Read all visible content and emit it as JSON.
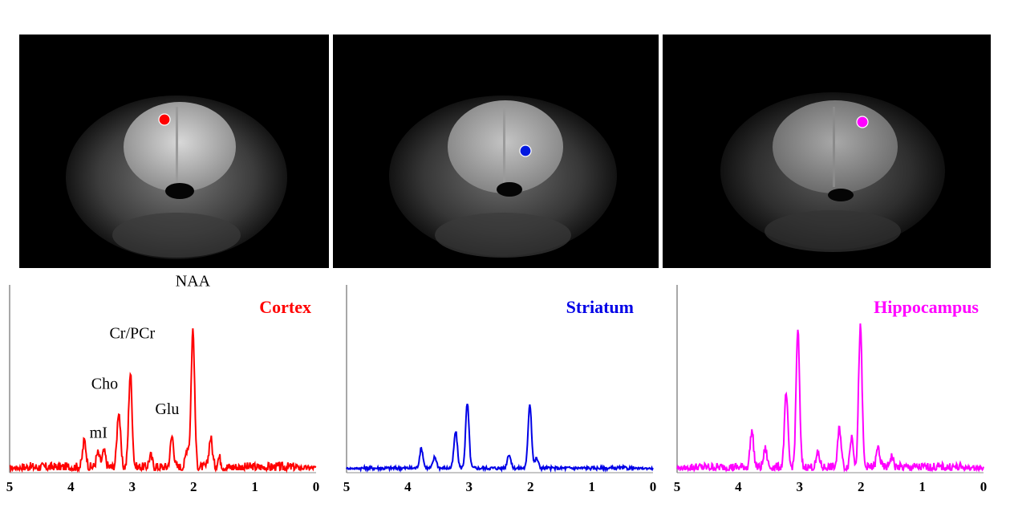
{
  "chart_data": [
    {
      "type": "line",
      "title": "Cortex",
      "title_color": "#ff0000",
      "line_color": "#ff0000",
      "dot_color": "#ff0000",
      "xlim": [
        5,
        0
      ],
      "x_ticks": [
        "5",
        "4",
        "3",
        "2",
        "1",
        "0"
      ],
      "peaks": [
        {
          "label": "NAA",
          "ppm": 2.01,
          "height": 0.98
        },
        {
          "label": "Cr/PCr",
          "ppm": 3.03,
          "height": 0.67
        },
        {
          "label": "Cho",
          "ppm": 3.22,
          "height": 0.4
        },
        {
          "label": "Glu",
          "ppm": 2.35,
          "height": 0.22
        },
        {
          "label": "mI",
          "ppm": 3.56,
          "height": 0.1
        }
      ],
      "minor_peaks": [
        [
          3.78,
          0.19
        ],
        [
          3.46,
          0.11
        ],
        [
          2.7,
          0.08
        ],
        [
          2.1,
          0.14
        ],
        [
          1.72,
          0.21
        ],
        [
          1.58,
          0.07
        ]
      ],
      "noise": 0.07,
      "peak_labels": [
        {
          "text": "NAA",
          "ppm": 2.01,
          "level": 1.3
        },
        {
          "text": "Cr/PCr",
          "ppm": 3.0,
          "level": 0.93
        },
        {
          "text": "Cho",
          "ppm": 3.45,
          "level": 0.57
        },
        {
          "text": "Glu",
          "ppm": 2.43,
          "level": 0.39
        },
        {
          "text": "mI",
          "ppm": 3.55,
          "level": 0.22
        }
      ]
    },
    {
      "type": "line",
      "title": "Striatum",
      "title_color": "#0000e6",
      "line_color": "#0000e6",
      "dot_color": "#0018e0",
      "xlim": [
        5,
        0
      ],
      "x_ticks": [
        "5",
        "4",
        "3",
        "2",
        "1",
        "0"
      ],
      "peaks": [
        {
          "ppm": 3.03,
          "height": 0.46
        },
        {
          "ppm": 2.01,
          "height": 0.46
        },
        {
          "ppm": 3.22,
          "height": 0.26
        }
      ],
      "minor_peaks": [
        [
          3.78,
          0.14
        ],
        [
          3.56,
          0.08
        ],
        [
          2.35,
          0.1
        ],
        [
          1.9,
          0.07
        ]
      ],
      "noise": 0.025
    },
    {
      "type": "line",
      "title": "Hippocampus",
      "title_color": "#ff00ff",
      "line_color": "#ff00ff",
      "dot_color": "#ff00ff",
      "xlim": [
        5,
        0
      ],
      "x_ticks": [
        "5",
        "4",
        "3",
        "2",
        "1",
        "0"
      ],
      "peaks": [
        {
          "ppm": 3.03,
          "height": 0.98
        },
        {
          "ppm": 2.01,
          "height": 1.0
        },
        {
          "ppm": 3.22,
          "height": 0.52
        },
        {
          "ppm": 2.35,
          "height": 0.28
        }
      ],
      "minor_peaks": [
        [
          3.78,
          0.26
        ],
        [
          3.56,
          0.13
        ],
        [
          2.7,
          0.1
        ],
        [
          2.15,
          0.22
        ],
        [
          1.72,
          0.14
        ],
        [
          1.5,
          0.08
        ]
      ],
      "noise": 0.065
    }
  ]
}
